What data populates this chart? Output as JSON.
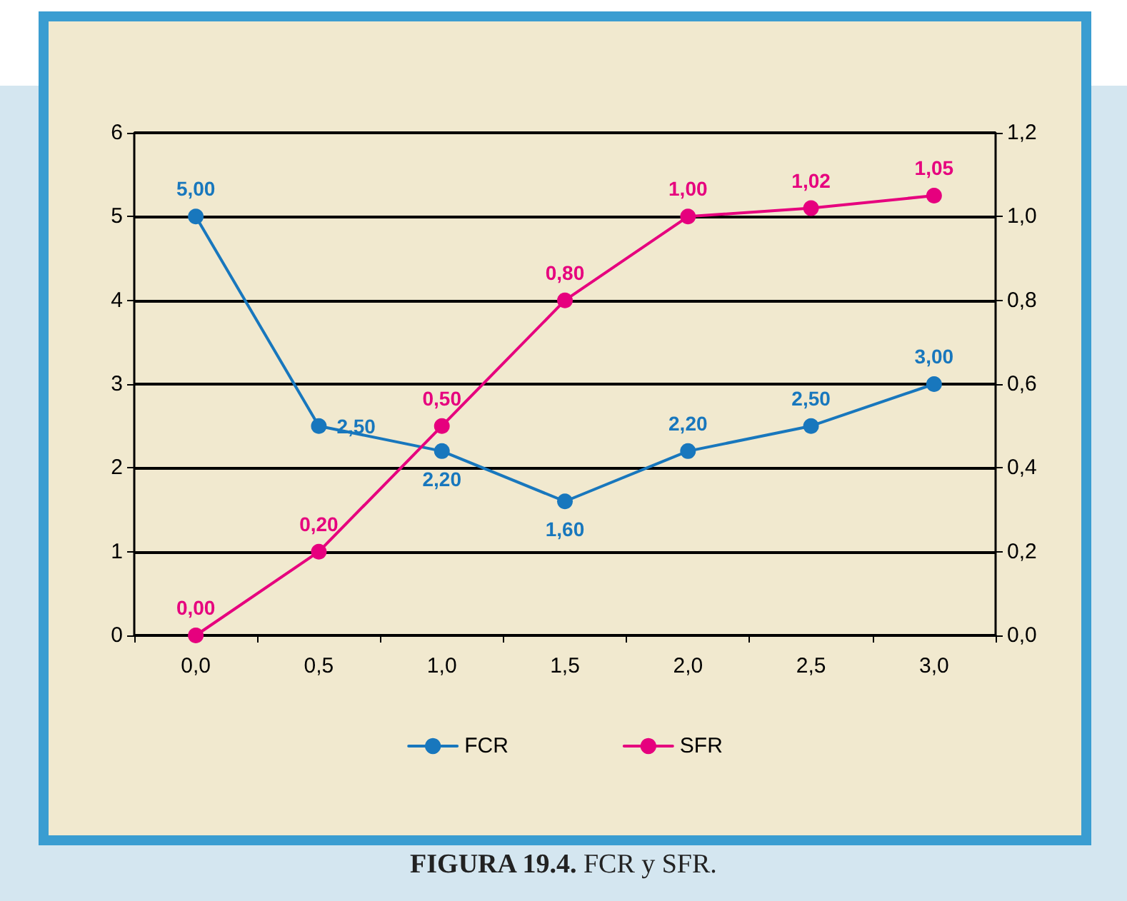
{
  "chart_data": {
    "type": "line",
    "categories": [
      "0,0",
      "0,5",
      "1,0",
      "1,5",
      "2,0",
      "2,5",
      "3,0"
    ],
    "series": [
      {
        "name": "FCR",
        "color": "#1877bd",
        "values": [
          5.0,
          2.5,
          2.2,
          1.6,
          2.2,
          2.5,
          3.0
        ],
        "value_labels": [
          "5,00",
          "2,50",
          "2,20",
          "1,60",
          "2,20",
          "2,50",
          "3,00"
        ]
      },
      {
        "name": "SFR",
        "color": "#e6007e",
        "axis": "y2",
        "values": [
          0.0,
          0.2,
          0.5,
          0.8,
          1.0,
          1.02,
          1.05
        ],
        "value_labels": [
          "0,00",
          "0,20",
          "0,50",
          "0,80",
          "1,00",
          "1,02",
          "1,05"
        ]
      }
    ],
    "ylim": [
      0,
      6
    ],
    "yticks": [
      0,
      1,
      2,
      3,
      4,
      5,
      6
    ],
    "y2lim": [
      0,
      1.2
    ],
    "y2ticks": [
      {
        "value": 0,
        "label": "0,0"
      },
      {
        "value": 0.2,
        "label": "0,2"
      },
      {
        "value": 0.4,
        "label": "0,4"
      },
      {
        "value": 0.6,
        "label": "0,6"
      },
      {
        "value": 0.8,
        "label": "0,8"
      },
      {
        "value": 1.0,
        "label": "1,0"
      },
      {
        "value": 1.2,
        "label": "1,2"
      }
    ],
    "grid": "y",
    "legend": "bottom",
    "marker": "circle",
    "line_style": "solid",
    "annotations": [
      "FIGURA 19.4. FCR y SFR."
    ]
  }
}
